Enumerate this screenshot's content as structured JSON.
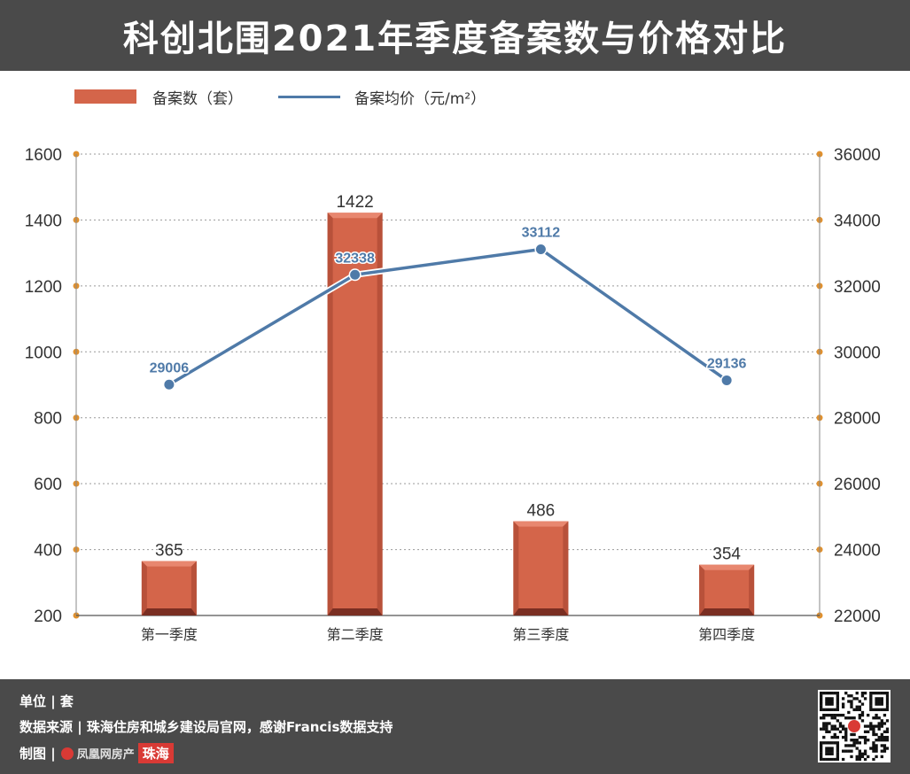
{
  "title": "科创北围2021年季度备案数与价格对比",
  "legend": {
    "bar_label": "备案数（套）",
    "line_label": "备案均价（元/m²）"
  },
  "colors": {
    "bar": "#d4654a",
    "bar_dark": "#7a2e22",
    "line": "#4f7aa8",
    "axis_dot": "#e0902e",
    "header_bg": "#4a4a4a"
  },
  "chart_data": {
    "type": "bar",
    "categories": [
      "第一季度",
      "第二季度",
      "第三季度",
      "第四季度"
    ],
    "series": [
      {
        "name": "备案数（套）",
        "type": "bar",
        "axis": "left",
        "values": [
          365,
          1422,
          486,
          354
        ]
      },
      {
        "name": "备案均价（元/m²）",
        "type": "line",
        "axis": "right",
        "values": [
          29006,
          32338,
          33112,
          29136
        ]
      }
    ],
    "y_left": {
      "ticks": [
        200,
        400,
        600,
        800,
        1000,
        1200,
        1400,
        1600
      ],
      "range": [
        200,
        1600
      ]
    },
    "y_right": {
      "ticks": [
        22000,
        24000,
        26000,
        28000,
        30000,
        32000,
        34000,
        36000
      ],
      "range": [
        22000,
        36000
      ]
    },
    "grid": true,
    "legend_position": "top-left"
  },
  "footer": {
    "unit": "单位 | 套",
    "source": "数据来源 | 珠海住房和城乡建设局官网，感谢Francis数据支持",
    "made_by": "制图 |",
    "brand": "凤凰网房产",
    "brand_city": "珠海"
  }
}
